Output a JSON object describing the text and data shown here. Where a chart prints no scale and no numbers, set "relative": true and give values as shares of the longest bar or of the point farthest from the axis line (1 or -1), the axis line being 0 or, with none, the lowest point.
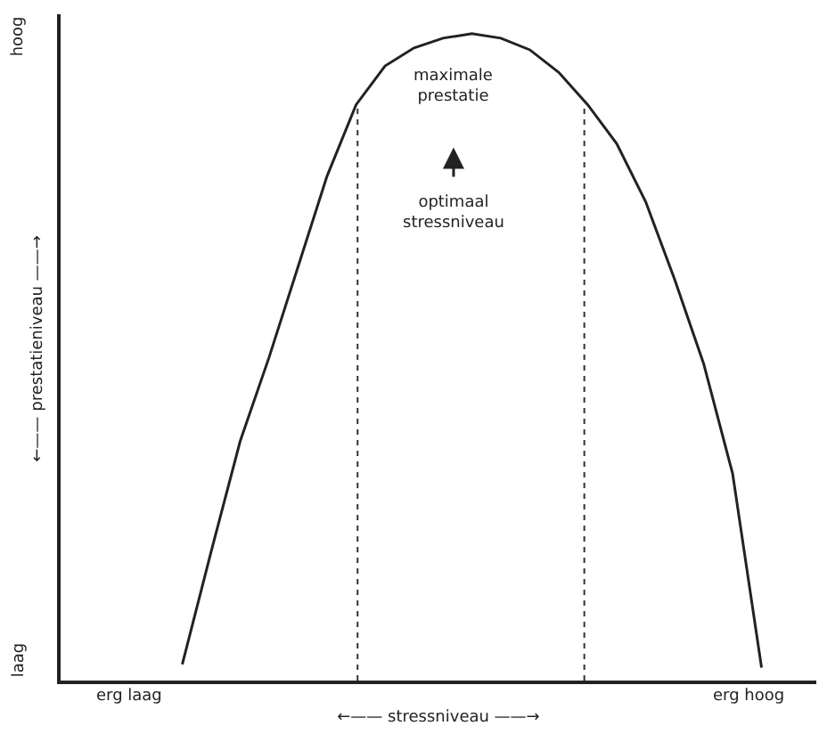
{
  "chart_data": {
    "type": "line",
    "relative": true,
    "xlabel": "←—— stressniveau ——→",
    "categories": [
      null,
      null,
      null,
      null,
      null,
      null,
      null,
      null,
      null,
      null,
      null,
      null,
      null,
      null,
      null,
      null,
      null,
      null,
      null,
      null,
      null
    ],
    "series": [
      {
        "color": "#222222",
        "values": [
          0.025,
          0.2,
          0.37,
          0.5,
          0.64,
          0.78,
          0.89,
          0.95,
          0.978,
          0.993,
          1,
          0.993,
          0.975,
          0.94,
          0.89,
          0.83,
          0.74,
          0.62,
          0.49,
          0.32,
          0.02
        ]
      }
    ],
    "annotations": [
      "hoog",
      "laag",
      "maximale\nprestatie",
      "optimaal\nstressniveau",
      "erg laag",
      "erg hoog",
      "←—— prestatieniveau ——→"
    ],
    "marker": "none",
    "line_style": "solid",
    "legend": false
  }
}
